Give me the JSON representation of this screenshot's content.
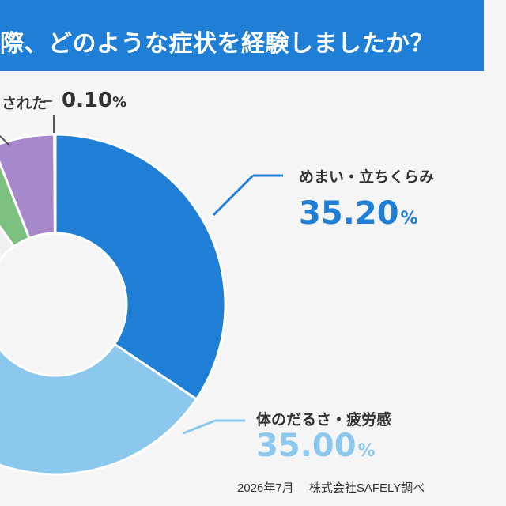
{
  "header": {
    "title": "際、どのような症状を経験しましたか？"
  },
  "chart_data": {
    "type": "pie",
    "donut": true,
    "title": "際、どのような症状を経験しましたか？",
    "slices": [
      {
        "label": "めまい・立ちくらみ",
        "value": 35.2,
        "display": "35.20",
        "color": "#1f7fd6"
      },
      {
        "label": "体のだるさ・疲労感",
        "value": 35.0,
        "display": "35.00",
        "color": "#8cc8ee"
      },
      {
        "label": "",
        "value": 22.0,
        "color": "#f0f0f0"
      },
      {
        "label": "",
        "value": 4.0,
        "color": "#7cc080"
      },
      {
        "label": "",
        "value": 6.0,
        "color": "#a888cc"
      },
      {
        "label": "されたと",
        "value": 0.1,
        "display": "0.10",
        "color": "#c8c8c8"
      }
    ],
    "unit": "%"
  },
  "labels": {
    "small_slice_label": "された",
    "small_slice_value": "0.10",
    "percent": "%"
  },
  "footer": {
    "source": "2026年7月　 株式会社SAFELY調べ"
  }
}
